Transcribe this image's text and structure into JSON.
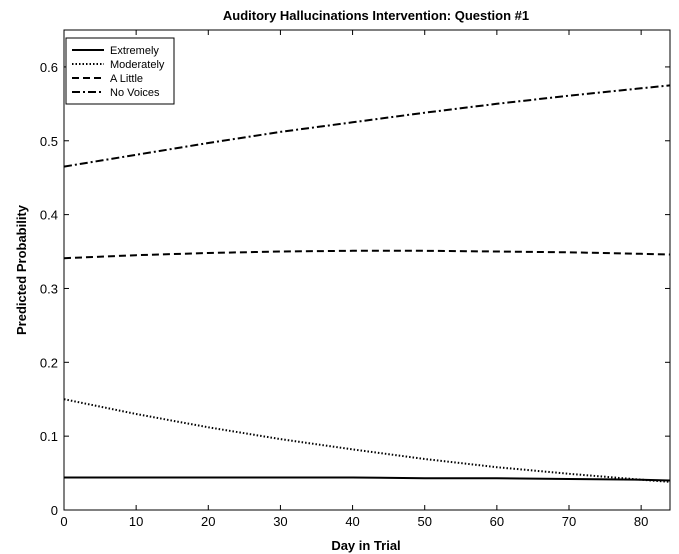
{
  "chart_data": {
    "type": "line",
    "title": "Auditory Hallucinations Intervention: Question #1",
    "xlabel": "Day in Trial",
    "ylabel": "Predicted Probability",
    "xlim": [
      0,
      84
    ],
    "ylim": [
      0,
      0.65
    ],
    "xticks": [
      0,
      10,
      20,
      30,
      40,
      50,
      60,
      70,
      80
    ],
    "yticks": [
      0,
      0.1,
      0.2,
      0.3,
      0.4,
      0.5,
      0.6
    ],
    "ytick_labels": [
      "0",
      "0.1",
      "0.2",
      "0.3",
      "0.4",
      "0.5",
      "0.6"
    ],
    "grid": false,
    "legend_position": "top-left",
    "x": [
      0,
      10,
      20,
      30,
      40,
      50,
      60,
      70,
      80,
      84
    ],
    "series": [
      {
        "name": "Extremely",
        "style": "solid",
        "values": [
          0.044,
          0.044,
          0.044,
          0.044,
          0.044,
          0.043,
          0.043,
          0.042,
          0.041,
          0.04
        ]
      },
      {
        "name": "Moderately",
        "style": "dotted",
        "values": [
          0.15,
          0.13,
          0.112,
          0.096,
          0.082,
          0.069,
          0.058,
          0.049,
          0.041,
          0.038
        ]
      },
      {
        "name": "A Little",
        "style": "dashed",
        "values": [
          0.341,
          0.345,
          0.348,
          0.35,
          0.351,
          0.351,
          0.35,
          0.349,
          0.347,
          0.346
        ]
      },
      {
        "name": "No Voices",
        "style": "dashdot",
        "values": [
          0.465,
          0.481,
          0.497,
          0.512,
          0.525,
          0.538,
          0.55,
          0.561,
          0.571,
          0.575
        ]
      }
    ]
  }
}
